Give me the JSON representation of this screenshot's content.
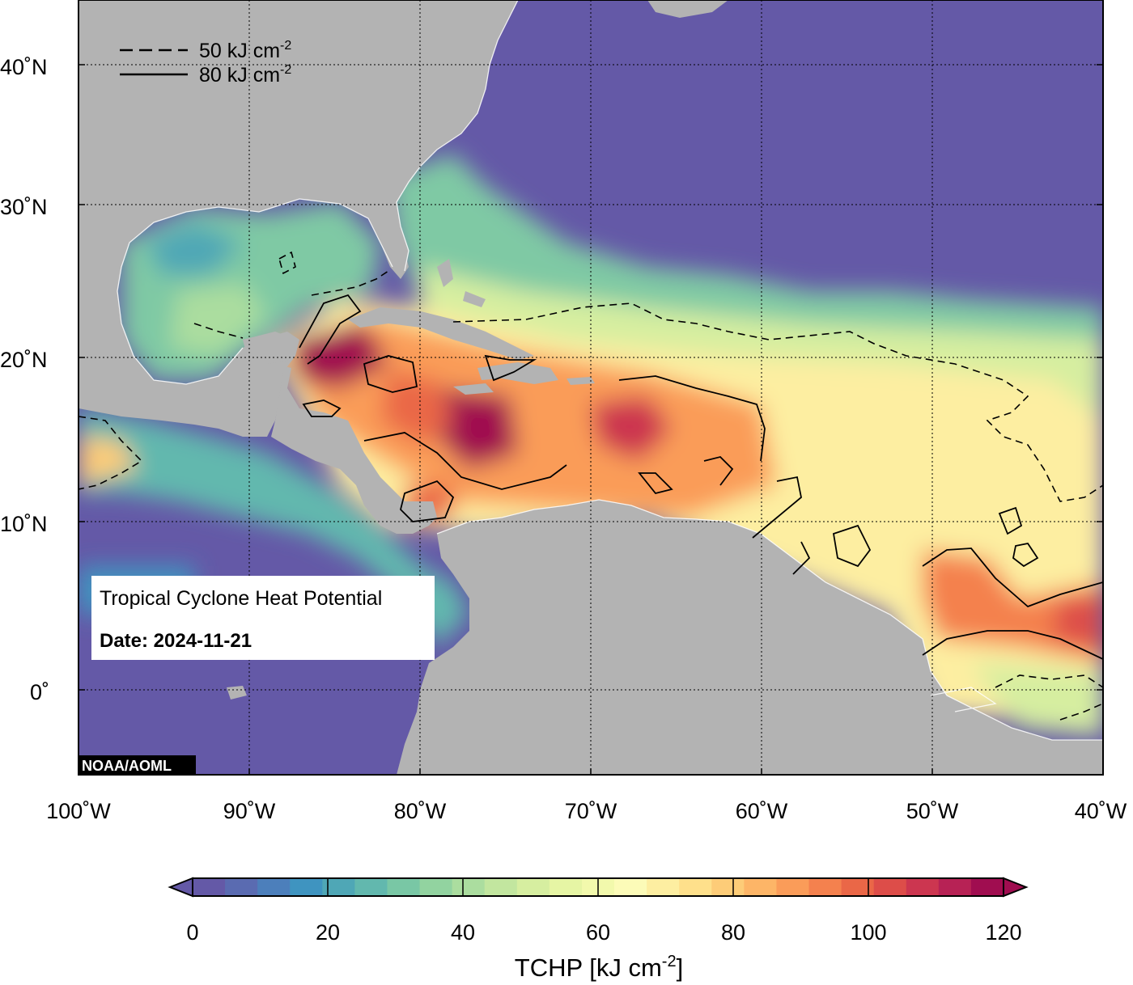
{
  "map": {
    "lon_range": [
      -100,
      -40
    ],
    "lat_range": [
      -5,
      45
    ],
    "lat_ticks": [
      {
        "value": 40,
        "label": "40˚N"
      },
      {
        "value": 30,
        "label": "30˚N"
      },
      {
        "value": 20,
        "label": "20˚N"
      },
      {
        "value": 10,
        "label": "10˚N"
      },
      {
        "value": 0,
        "label": "0˚"
      }
    ],
    "lon_ticks": [
      {
        "value": -100,
        "label": "100˚W"
      },
      {
        "value": -90,
        "label": "90˚W"
      },
      {
        "value": -80,
        "label": "80˚W"
      },
      {
        "value": -70,
        "label": "70˚W"
      },
      {
        "value": -60,
        "label": "60˚W"
      },
      {
        "value": -50,
        "label": "50˚W"
      },
      {
        "value": -40,
        "label": "40˚W"
      }
    ],
    "legend": {
      "dashed_label": "50 kJ cm",
      "solid_label": "80 kJ cm",
      "superscript": "-2"
    },
    "info_box": {
      "title": "Tropical Cyclone Heat Potential",
      "date": "Date: 2024-11-21"
    },
    "credit": "NOAA/AOML",
    "colors": {
      "land": "#b3b3b3",
      "cold_ocean": "#6459a7"
    }
  },
  "colorbar": {
    "title": "TCHP [kJ cm",
    "title_superscript": "-2",
    "title_close": "]",
    "min": 0,
    "max": 120,
    "tick_labels": [
      "0",
      "20",
      "40",
      "60",
      "80",
      "100",
      "120"
    ],
    "colors": [
      "#6459a7",
      "#5a6bb1",
      "#4c7fbb",
      "#3f94c0",
      "#4fa7b6",
      "#62b8ae",
      "#79c7a5",
      "#92d3a0",
      "#abdd9f",
      "#c2e69f",
      "#d6eea0",
      "#e6f5a4",
      "#f2f9ac",
      "#fcfbb8",
      "#fdeea1",
      "#fee08b",
      "#fdcc78",
      "#fdb567",
      "#fa9c59",
      "#f4814e",
      "#ea6747",
      "#dd4d49",
      "#cc3650",
      "#b72255",
      "#a00d50"
    ]
  }
}
